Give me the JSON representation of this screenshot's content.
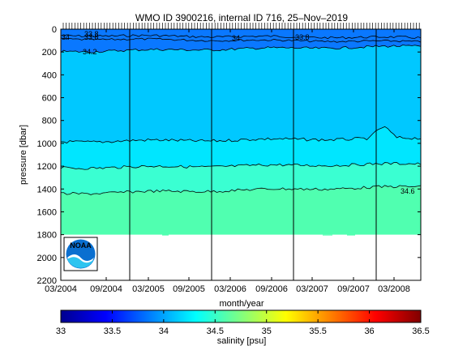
{
  "chart_data": {
    "type": "heatmap",
    "title": "WMO ID 3900216, internal ID 716, 25–Nov–2019",
    "xlabel": "month/year",
    "ylabel": "pressure [dbar]",
    "x_tick_labels": [
      "03/2004",
      "09/2004",
      "03/2005",
      "09/2005",
      "03/2006",
      "09/2006",
      "03/2007",
      "09/2007",
      "03/2008"
    ],
    "y_ticks": [
      0,
      200,
      400,
      600,
      800,
      1000,
      1200,
      1400,
      1600,
      1800,
      2000,
      2200
    ],
    "ylim": [
      0,
      2200
    ],
    "grid": false,
    "colorbar": {
      "label": "salinity [psu]",
      "ticks": [
        33,
        33.5,
        34,
        34.5,
        35,
        35.5,
        36,
        36.5
      ],
      "range": [
        33,
        36.5
      ],
      "colormap": [
        "#00008f",
        "#0000ff",
        "#0080ff",
        "#00ffff",
        "#80ff80",
        "#ffff00",
        "#ff8000",
        "#ff0000",
        "#800000"
      ]
    },
    "layers": [
      {
        "salinity_range": [
          33.8,
          34.2
        ],
        "color": "#0a78ff"
      },
      {
        "salinity_range": [
          34.2,
          34.4
        ],
        "color": "#00c8ff"
      },
      {
        "salinity_range": [
          34.4,
          34.5
        ],
        "color": "#00e6ff"
      },
      {
        "salinity_range": [
          34.5,
          34.6
        ],
        "color": "#3affd2"
      },
      {
        "salinity_range": [
          34.6,
          34.7
        ],
        "color": "#50ffb0"
      }
    ],
    "contour_labels": [
      "34",
      "33.8",
      "33.8",
      "34.2",
      "34",
      "33.8",
      "34.6"
    ],
    "max_profile_depth": 1800
  },
  "logo": {
    "text": "NOAA"
  }
}
